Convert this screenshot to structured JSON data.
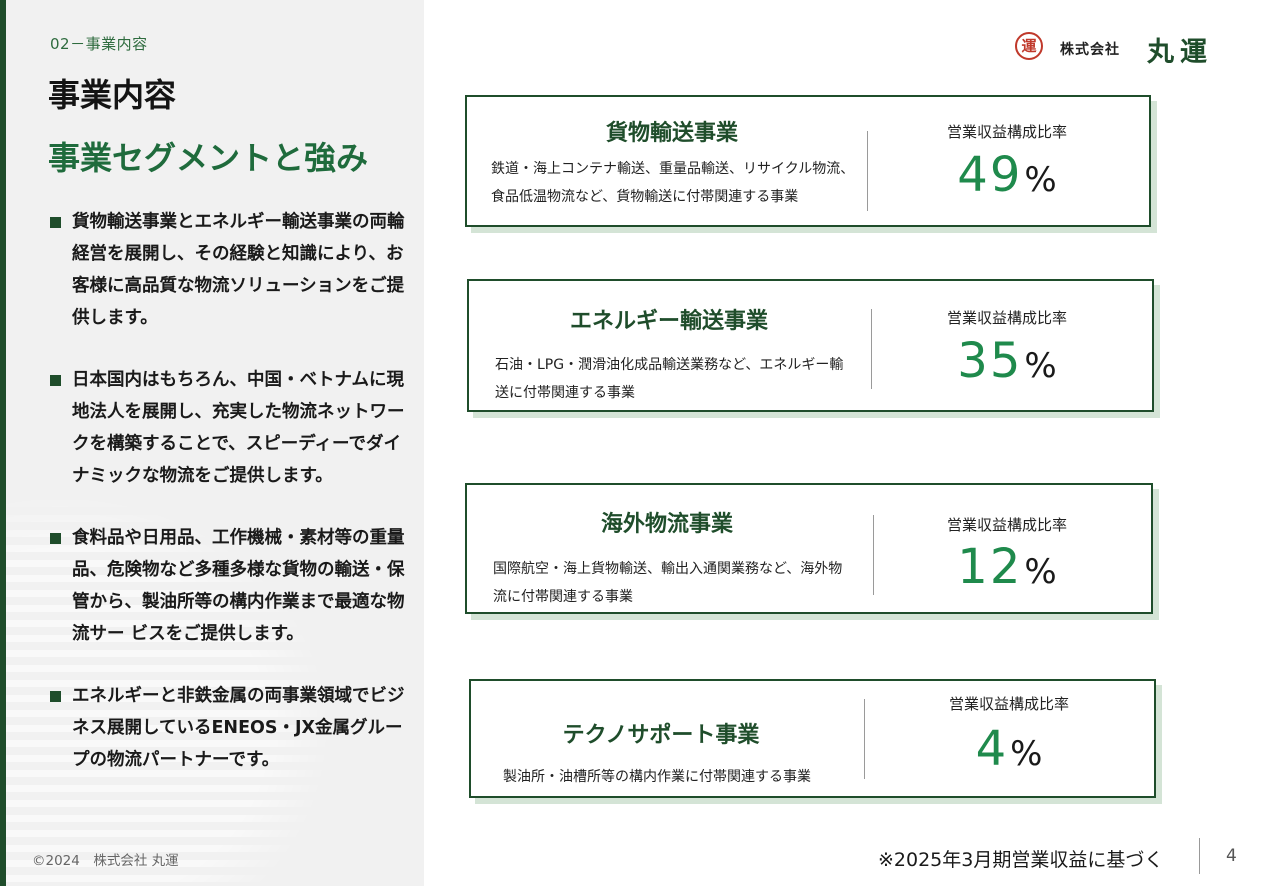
{
  "section_label": "02－事業内容",
  "title": "事業内容",
  "subtitle": "事業セグメントと強み",
  "bullets": [
    "貨物輸送事業とエネルギー輸送事業の両輪経営を展開し、その経験と知識により、お客様に高品質な物流ソリューションをご提供します。",
    "日本国内はもちろん、中国・ベトナムに現地法人を展開し、充実した物流ネットワークを構築することで、スピーディーでダイナミックな物流をご提供します。",
    "食料品や日用品、工作機械・素材等の重量品、危険物など多種多様な貨物の輸送・保管から、製油所等の構内作業まで最適な物流サー ビスをご提供します。",
    "エネルギーと非鉄金属の両事業領域でビジネス展開しているENEOS・JX金属グループの物流パートナーです。"
  ],
  "copyright": "©2024　株式会社 丸運",
  "logo": {
    "mark": "運",
    "company_type": "株式会社",
    "name": "丸運"
  },
  "segments": [
    {
      "name": "貨物輸送事業",
      "description": "鉄道・海上コンテナ輸送、重量品輸送、リサイクル物流、食品低温物流など、貨物輸送に付帯関連する事業",
      "ratio_label": "営業収益構成比率",
      "ratio_value": "49",
      "ratio_unit": "%"
    },
    {
      "name": "エネルギー輸送事業",
      "description": "石油・LPG・潤滑油化成品輸送業務など、エネルギー輸送に付帯関連する事業",
      "ratio_label": "営業収益構成比率",
      "ratio_value": "35",
      "ratio_unit": "%"
    },
    {
      "name": "海外物流事業",
      "description": "国際航空・海上貨物輸送、輸出入通関業務など、海外物流に付帯関連する事業",
      "ratio_label": "営業収益構成比率",
      "ratio_value": "12",
      "ratio_unit": "%"
    },
    {
      "name": "テクノサポート事業",
      "description": "製油所・油槽所等の構内作業に付帯関連する事業",
      "ratio_label": "営業収益構成比率",
      "ratio_value": "4",
      "ratio_unit": "%"
    }
  ],
  "footnote": "※2025年3月期営業収益に基づく",
  "page_number": "4"
}
